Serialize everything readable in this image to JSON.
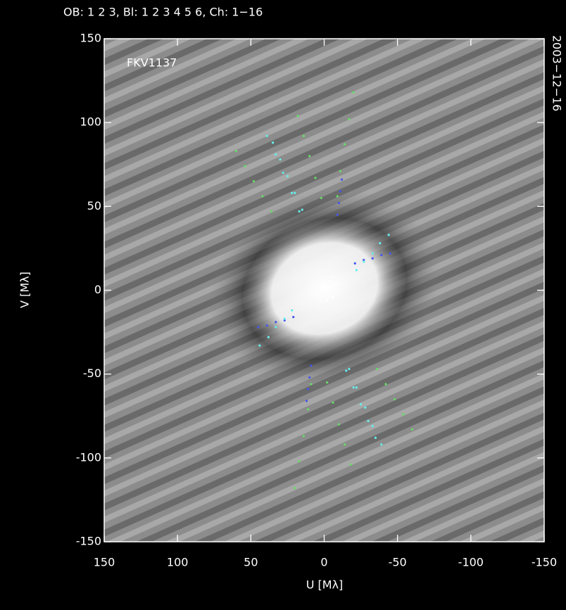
{
  "chart_data": {
    "type": "scatter",
    "title": "OB:  1 2 3, Bl:  1 2 3 4 5 6, Ch: 1−16",
    "date": "2003−12−16",
    "annotation": "FKV1137",
    "xlabel": "U [Mλ]",
    "ylabel": "V [Mλ]",
    "xlim": [
      150,
      -150
    ],
    "ylim": [
      -150,
      150
    ],
    "xticks": [
      150,
      100,
      50,
      0,
      -50,
      -100,
      -150
    ],
    "yticks": [
      -150,
      -100,
      -50,
      0,
      50,
      100,
      150
    ],
    "series": [
      {
        "color": "#66dd66",
        "x": [
          18,
          14,
          10,
          6,
          2
        ],
        "values": [
          104,
          92,
          80,
          67,
          55
        ]
      },
      {
        "color": "#66dd66",
        "x": [
          -18,
          -14,
          -10,
          -6,
          -2
        ],
        "values": [
          -104,
          -92,
          -80,
          -67,
          -55
        ]
      },
      {
        "color": "#66dd66",
        "x": [
          -20,
          -17,
          -14,
          -11,
          -9
        ],
        "values": [
          118,
          102,
          87,
          71,
          56
        ]
      },
      {
        "color": "#66dd66",
        "x": [
          20,
          17,
          14,
          11,
          9
        ],
        "values": [
          -118,
          -102,
          -87,
          -71,
          -56
        ]
      },
      {
        "color": "#66dd66",
        "x": [
          60,
          54,
          48,
          42,
          36
        ],
        "values": [
          83,
          74,
          65,
          56,
          47
        ]
      },
      {
        "color": "#66dd66",
        "x": [
          -60,
          -54,
          -48,
          -42,
          -36
        ],
        "values": [
          -83,
          -74,
          -65,
          -56,
          -47
        ]
      },
      {
        "color": "#66eeee",
        "x": [
          39,
          33,
          28,
          22,
          17
        ],
        "values": [
          92,
          81,
          70,
          58,
          47
        ]
      },
      {
        "color": "#66eeee",
        "x": [
          -39,
          -33,
          -28,
          -22,
          -17
        ],
        "values": [
          -92,
          -81,
          -70,
          -58,
          -47
        ]
      },
      {
        "color": "#66eeee",
        "x": [
          35,
          30,
          25,
          20,
          15
        ],
        "values": [
          88,
          78,
          68,
          58,
          48
        ]
      },
      {
        "color": "#66eeee",
        "x": [
          -35,
          -30,
          -25,
          -20,
          -15
        ],
        "values": [
          -88,
          -78,
          -68,
          -58,
          -48
        ]
      },
      {
        "color": "#4455ee",
        "x": [
          -12,
          -11,
          -10,
          -9
        ],
        "values": [
          66,
          59,
          52,
          45
        ]
      },
      {
        "color": "#4455ee",
        "x": [
          12,
          11,
          10,
          9
        ],
        "values": [
          -66,
          -59,
          -52,
          -45
        ]
      },
      {
        "color": "#4455ee",
        "x": [
          -45,
          -39,
          -33,
          -27,
          -21
        ],
        "values": [
          22,
          21,
          19,
          18,
          16
        ]
      },
      {
        "color": "#4455ee",
        "x": [
          45,
          39,
          33,
          27,
          21
        ],
        "values": [
          -22,
          -21,
          -19,
          -18,
          -16
        ]
      },
      {
        "color": "#66eeee",
        "x": [
          44,
          38,
          33,
          27,
          22
        ],
        "values": [
          -33,
          -28,
          -22,
          -17,
          -12
        ]
      },
      {
        "color": "#66eeee",
        "x": [
          -44,
          -38,
          -33,
          -27,
          -22
        ],
        "values": [
          33,
          28,
          22,
          17,
          12
        ]
      },
      {
        "color": "#ffffff",
        "x": [
          -6,
          -8,
          -8,
          -6,
          -2
        ],
        "values": [
          8,
          4,
          0,
          -4,
          -6
        ]
      }
    ]
  }
}
